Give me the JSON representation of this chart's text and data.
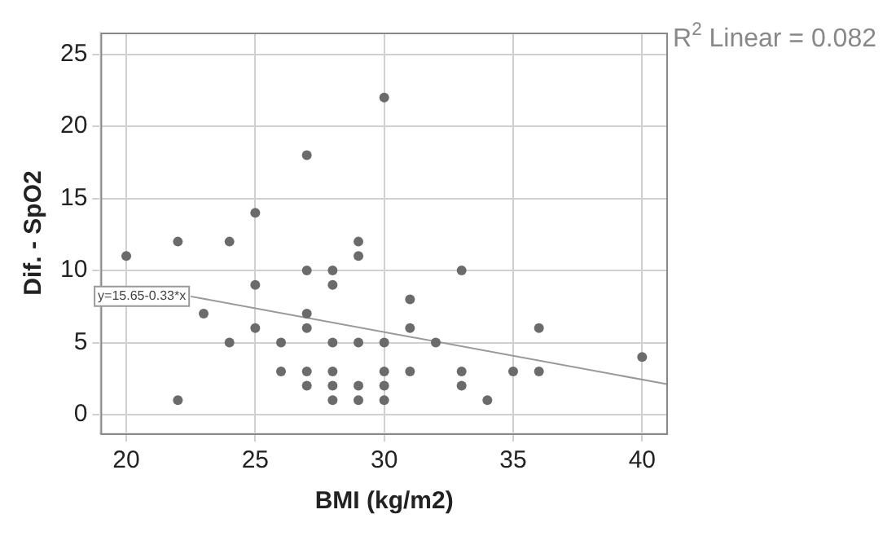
{
  "chart_data": {
    "type": "scatter",
    "xlabel": "BMI (kg/m2)",
    "ylabel": "Dif. - SpO2",
    "xlim": [
      19,
      41
    ],
    "xticks": [
      20,
      25,
      30,
      35,
      40
    ],
    "ylim": [
      -1.3,
      26.5
    ],
    "yticks": [
      0,
      5,
      10,
      15,
      20,
      25
    ],
    "grid": true,
    "marker": "circle",
    "annotations": [
      "R$^{2}$ Linear = 0.082",
      "y=15.65-0.33*x"
    ],
    "series": [
      {
        "color": "#6b6b6b",
        "x": [
          20,
          22,
          22,
          23,
          24,
          24,
          25,
          25,
          25,
          26,
          26,
          27,
          27,
          27,
          27,
          27,
          27,
          28,
          28,
          28,
          28,
          28,
          28,
          29,
          29,
          29,
          29,
          29,
          30,
          30,
          30,
          30,
          30,
          31,
          31,
          31,
          32,
          33,
          33,
          33,
          34,
          35,
          36,
          36,
          40
        ],
        "values": [
          11,
          12,
          1,
          7,
          12,
          5,
          14,
          9,
          6,
          5,
          3,
          18,
          10,
          7,
          6,
          3,
          2,
          10,
          9,
          5,
          3,
          2,
          1,
          12,
          11,
          5,
          2,
          1,
          22,
          5,
          3,
          2,
          1,
          8,
          6,
          3,
          5,
          10,
          3,
          2,
          1,
          3,
          6,
          3,
          4
        ]
      },
      {
        "type": "line",
        "color": "#999999",
        "marker": "none",
        "x": [
          22.5,
          41
        ],
        "values": [
          8.2,
          2.1
        ]
      }
    ]
  }
}
